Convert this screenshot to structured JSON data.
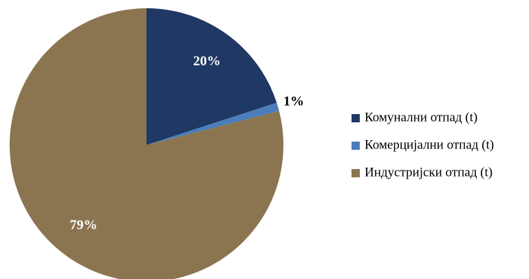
{
  "chart_data": {
    "type": "pie",
    "categories": [
      "Комунални отпад (t)",
      "Комерцијални отпад (t)",
      "Индустријски отпад (t)"
    ],
    "values": [
      20,
      1,
      79
    ],
    "value_labels": [
      "20%",
      "1%",
      "79%"
    ],
    "colors": [
      "#1f3864",
      "#4a7ebb",
      "#8b7550"
    ],
    "legend": "right"
  }
}
